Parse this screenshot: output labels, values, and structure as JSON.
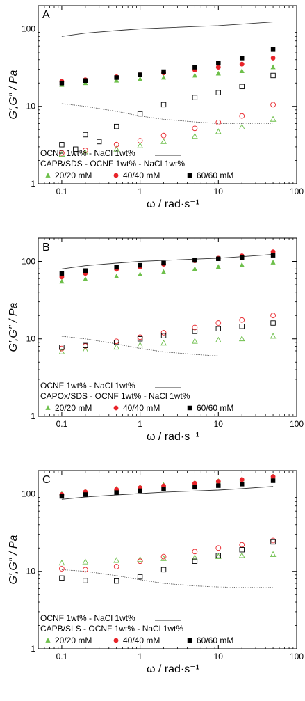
{
  "colors": {
    "green": "#6dbf4a",
    "red": "#e8242a",
    "black": "#000000",
    "reference": "#333333",
    "axis": "#000000"
  },
  "chart_data": [
    {
      "type": "scatter",
      "panel_label": "A",
      "xlabel": "ω / rad·s⁻¹",
      "ylabel": "G′,G″ / Pa",
      "xscale": "log",
      "yscale": "log",
      "xlim": [
        0.05,
        100
      ],
      "ylim": [
        1,
        200
      ],
      "xticks": [
        "0.1",
        "1",
        "10",
        "100"
      ],
      "yticks": [
        "1",
        "10",
        "100"
      ],
      "legend": {
        "reference_label": "OCNF 1wt% - NaCl 1wt%",
        "title": "CAPB/SDS - OCNF 1wt% - NaCl 1wt%",
        "entries": [
          "20/20 mM",
          "40/40 mM",
          "60/60 mM"
        ]
      },
      "reference": {
        "G_prime": {
          "x": [
            0.1,
            0.2,
            0.5,
            1,
            2,
            5,
            10,
            20,
            50
          ],
          "y": [
            80,
            88,
            95,
            100,
            103,
            107,
            110,
            115,
            123
          ]
        },
        "G_double_prime": {
          "x": [
            0.1,
            0.2,
            0.5,
            1,
            2,
            5,
            10,
            20,
            50
          ],
          "y": [
            10.8,
            10.0,
            8.6,
            7.5,
            6.8,
            6.3,
            6.0,
            6.0,
            6.0
          ]
        }
      },
      "series": [
        {
          "name": "20/20 mM",
          "color": "green",
          "G_prime": {
            "x": [
              0.1,
              0.2,
              0.5,
              1,
              2,
              5,
              10,
              20,
              50
            ],
            "y": [
              19,
              20,
              21.5,
              22.5,
              23.5,
              25,
              26.5,
              28.5,
              32
            ]
          },
          "G_double_prime": {
            "x": [
              0.1,
              0.2,
              0.5,
              1,
              2,
              5,
              10,
              20,
              50
            ],
            "y": [
              2.4,
              2.5,
              2.8,
              3.1,
              3.5,
              4.1,
              4.7,
              5.4,
              6.8
            ]
          }
        },
        {
          "name": "40/40 mM",
          "color": "red",
          "G_prime": {
            "x": [
              0.1,
              0.2,
              0.5,
              1,
              2,
              5,
              10,
              20,
              50
            ],
            "y": [
              21,
              22,
              24,
              25.5,
              27,
              29.5,
              32,
              35,
              42
            ]
          },
          "G_double_prime": {
            "x": [
              0.1,
              0.2,
              0.5,
              1,
              2,
              5,
              10,
              20,
              50
            ],
            "y": [
              2.5,
              2.7,
              3.2,
              3.6,
              4.2,
              5.2,
              6.2,
              7.5,
              10.5
            ]
          }
        },
        {
          "name": "60/60 mM",
          "color": "black",
          "G_prime": {
            "x": [
              0.1,
              0.2,
              0.5,
              1,
              2,
              5,
              10,
              20,
              50
            ],
            "y": [
              20,
              21.5,
              23.5,
              25.5,
              28,
              32,
              36,
              42,
              55
            ]
          },
          "G_double_prime": {
            "x": [
              0.1,
              0.15,
              0.2,
              0.3,
              0.5,
              1,
              2,
              5,
              10,
              20,
              50
            ],
            "y": [
              3.2,
              2.8,
              4.3,
              3.5,
              5.5,
              8,
              10.5,
              13,
              15,
              18,
              25
            ]
          }
        }
      ]
    },
    {
      "type": "scatter",
      "panel_label": "B",
      "xlabel": "ω / rad·s⁻¹",
      "ylabel": "G′,G″ / Pa",
      "xscale": "log",
      "yscale": "log",
      "xlim": [
        0.05,
        100
      ],
      "ylim": [
        1,
        200
      ],
      "xticks": [
        "0.1",
        "1",
        "10",
        "100"
      ],
      "yticks": [
        "1",
        "10",
        "100"
      ],
      "legend": {
        "reference_label": "OCNF 1wt% - NaCl 1wt%",
        "title": "CAPOx/SDS - OCNF 1wt% - NaCl 1wt%",
        "entries": [
          "20/20 mM",
          "40/40 mM",
          "60/60 mM"
        ]
      },
      "reference": {
        "G_prime": {
          "x": [
            0.1,
            0.2,
            0.5,
            1,
            2,
            5,
            10,
            20,
            50
          ],
          "y": [
            80,
            88,
            95,
            100,
            103,
            107,
            110,
            115,
            123
          ]
        },
        "G_double_prime": {
          "x": [
            0.1,
            0.2,
            0.5,
            1,
            2,
            5,
            10,
            20,
            50
          ],
          "y": [
            10.8,
            10.0,
            8.6,
            7.5,
            6.8,
            6.3,
            6.0,
            6.0,
            6.0
          ]
        }
      },
      "series": [
        {
          "name": "20/20 mM",
          "color": "green",
          "G_prime": {
            "x": [
              0.1,
              0.2,
              0.5,
              1,
              2,
              5,
              10,
              20,
              50
            ],
            "y": [
              55,
              59,
              64,
              68,
              73,
              80,
              85,
              90,
              97
            ]
          },
          "G_double_prime": {
            "x": [
              0.1,
              0.2,
              0.5,
              1,
              2,
              5,
              10,
              20,
              50
            ],
            "y": [
              6.8,
              7.2,
              7.8,
              8.3,
              8.8,
              9.3,
              9.6,
              10.0,
              10.8
            ]
          }
        },
        {
          "name": "40/40 mM",
          "color": "red",
          "G_prime": {
            "x": [
              0.1,
              0.2,
              0.5,
              1,
              2,
              5,
              10,
              20,
              50
            ],
            "y": [
              63,
              70,
              79,
              85,
              92,
              102,
              110,
              118,
              133
            ]
          },
          "G_double_prime": {
            "x": [
              0.1,
              0.2,
              0.5,
              1,
              2,
              5,
              10,
              20,
              50
            ],
            "y": [
              7.5,
              8.1,
              9.3,
              10.5,
              12,
              14,
              16,
              17.5,
              20
            ]
          }
        },
        {
          "name": "60/60 mM",
          "color": "black",
          "G_prime": {
            "x": [
              0.1,
              0.2,
              0.5,
              1,
              2,
              5,
              10,
              20,
              50
            ],
            "y": [
              70,
              76,
              84,
              89,
              95,
              103,
              108,
              112,
              120
            ]
          },
          "G_double_prime": {
            "x": [
              0.1,
              0.2,
              0.5,
              1,
              2,
              5,
              10,
              20,
              50
            ],
            "y": [
              7.8,
              8.2,
              9,
              10,
              11,
              12.5,
              13.5,
              14.5,
              16
            ]
          }
        }
      ]
    },
    {
      "type": "scatter",
      "panel_label": "C",
      "xlabel": "ω / rad·s⁻¹",
      "ylabel": "G′,G″ / Pa",
      "xscale": "log",
      "yscale": "log",
      "xlim": [
        0.05,
        100
      ],
      "ylim": [
        1,
        200
      ],
      "xticks": [
        "0.1",
        "1",
        "10",
        "100"
      ],
      "yticks": [
        "1",
        "10",
        "100"
      ],
      "legend": {
        "reference_label": "OCNF 1wt% - NaCl 1wt%",
        "title": "CAPB/SLS - OCNF 1wt% - NaCl 1wt%",
        "entries": [
          "20/20 mM",
          "40/40 mM",
          "60/60 mM"
        ]
      },
      "reference": {
        "G_prime": {
          "x": [
            0.1,
            0.2,
            0.5,
            1,
            2,
            5,
            10,
            20,
            50
          ],
          "y": [
            85,
            91,
            97,
            101,
            105,
            109,
            112,
            117,
            125
          ]
        },
        "G_double_prime": {
          "x": [
            0.1,
            0.2,
            0.5,
            1,
            2,
            5,
            10,
            20,
            50
          ],
          "y": [
            10.5,
            10.0,
            8.8,
            7.8,
            7.0,
            6.5,
            6.3,
            6.2,
            6.2
          ]
        }
      },
      "series": [
        {
          "name": "20/20 mM",
          "color": "green",
          "G_prime": {
            "x": [
              0.1,
              0.2,
              0.5,
              1,
              2,
              5,
              10,
              20,
              50
            ],
            "y": [
              100,
              108,
              117,
              124,
              131,
              140,
              147,
              155,
              168
            ]
          },
          "G_double_prime": {
            "x": [
              0.1,
              0.2,
              0.5,
              1,
              2,
              5,
              10,
              20,
              50
            ],
            "y": [
              12.8,
              13.2,
              13.8,
              14.2,
              14.6,
              15.0,
              15.5,
              16.0,
              16.5
            ]
          }
        },
        {
          "name": "40/40 mM",
          "color": "red",
          "G_prime": {
            "x": [
              0.1,
              0.2,
              0.5,
              1,
              2,
              5,
              10,
              20,
              50
            ],
            "y": [
              98,
              106,
              114,
              120,
              127,
              137,
              145,
              153,
              167
            ]
          },
          "G_double_prime": {
            "x": [
              0.1,
              0.2,
              0.5,
              1,
              2,
              5,
              10,
              20,
              50
            ],
            "y": [
              10.8,
              10.5,
              11.5,
              13.5,
              15.5,
              18,
              20,
              22,
              25
            ]
          }
        },
        {
          "name": "60/60 mM",
          "color": "black",
          "G_prime": {
            "x": [
              0.1,
              0.2,
              0.5,
              1,
              2,
              5,
              10,
              20,
              50
            ],
            "y": [
              93,
              98,
              104,
              110,
              115,
              122,
              128,
              134,
              148
            ]
          },
          "G_double_prime": {
            "x": [
              0.1,
              0.2,
              0.5,
              1,
              2,
              5,
              10,
              20,
              50
            ],
            "y": [
              8.2,
              7.6,
              7.5,
              8.5,
              10.5,
              13.5,
              16,
              19,
              24
            ]
          }
        }
      ]
    }
  ]
}
